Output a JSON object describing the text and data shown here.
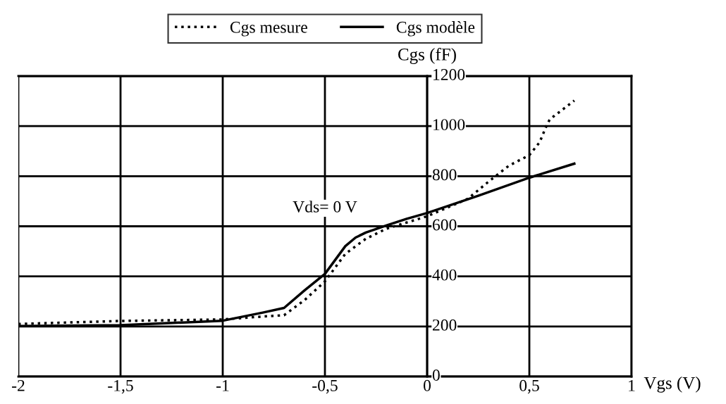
{
  "chart_data": {
    "type": "line",
    "xlabel": "Vgs (V)",
    "ylabel": "Cgs (fF)",
    "xlim": [
      -2,
      1
    ],
    "ylim": [
      0,
      1200
    ],
    "xticks": [
      {
        "value": -2,
        "label": "-2"
      },
      {
        "value": -1.5,
        "label": "-1,5"
      },
      {
        "value": -1,
        "label": "-1"
      },
      {
        "value": -0.5,
        "label": "-0,5"
      },
      {
        "value": 0,
        "label": "0"
      },
      {
        "value": 0.5,
        "label": "0,5"
      },
      {
        "value": 1,
        "label": "1"
      }
    ],
    "yticks": [
      0,
      200,
      400,
      600,
      800,
      1000,
      1200
    ],
    "grid": true,
    "legend": "top",
    "annotations": [
      "Vds= 0 V"
    ],
    "series": [
      {
        "name": "Cgs mesure",
        "color": "#000000",
        "line_style": "dotted",
        "x": [
          -2,
          -1.5,
          -1,
          -0.8,
          -0.7,
          -0.6,
          -0.5,
          -0.4,
          -0.3,
          -0.2,
          -0.1,
          0,
          0.1,
          0.2,
          0.3,
          0.4,
          0.5,
          0.55,
          0.58,
          0.6,
          0.72
        ],
        "values": [
          210,
          222,
          228,
          240,
          245,
          305,
          380,
          490,
          550,
          590,
          615,
          640,
          675,
          710,
          778,
          842,
          884,
          935,
          994,
          1027,
          1102
        ]
      },
      {
        "name": "Cgs modèle",
        "color": "#000000",
        "line_style": "solid",
        "x": [
          -2,
          -1.5,
          -1,
          -0.8,
          -0.7,
          -0.6,
          -0.5,
          -0.4,
          -0.35,
          -0.3,
          -0.2,
          -0.1,
          0,
          0.25,
          0.5,
          0.72
        ],
        "values": [
          202,
          205,
          223,
          256,
          274,
          344,
          410,
          521,
          555,
          575,
          603,
          630,
          653,
          722,
          794,
          850
        ]
      }
    ]
  }
}
